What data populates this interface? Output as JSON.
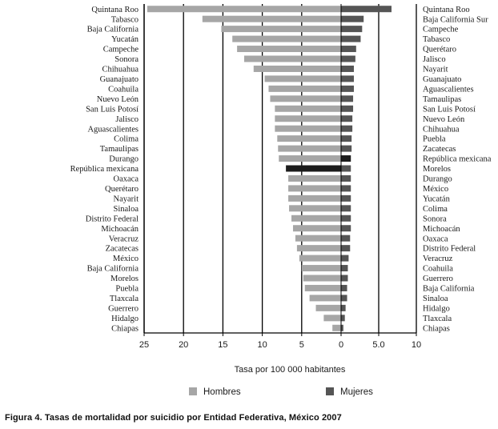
{
  "chart_data": {
    "type": "bar",
    "title": "",
    "xlabel": "Tasa por 100 000 habitantes",
    "ylabel": "",
    "grid": true,
    "series": [
      {
        "name": "Hombres",
        "color": "#a6a6a6",
        "highlight_color": "#1c1c1c",
        "highlight_category": "República mexicana",
        "categories": [
          "Quintana Roo",
          "Tabasco",
          "Baja California",
          "Yucatán",
          "Campeche",
          "Sonora",
          "Chihuahua",
          "Guanajuato",
          "Coahuila",
          "Nuevo León",
          "San Luis Potosí",
          "Jalisco",
          "Aguascalientes",
          "Colima",
          "Tamaulipas",
          "Durango",
          "República mexicana",
          "Oaxaca",
          "Querétaro",
          "Nayarit",
          "Sinaloa",
          "Distrito Federal",
          "Michoacán",
          "Veracruz",
          "Zacatecas",
          "México",
          "Baja California",
          "Morelos",
          "Puebla",
          "Tlaxcala",
          "Guerrero",
          "Hidalgo",
          "Chiapas"
        ],
        "values": [
          24.6,
          17.6,
          15.2,
          13.8,
          13.2,
          12.3,
          11.1,
          9.7,
          9.2,
          9.0,
          8.4,
          8.4,
          8.4,
          8.1,
          8.0,
          7.9,
          7.0,
          6.7,
          6.7,
          6.7,
          6.6,
          6.3,
          6.1,
          5.8,
          5.6,
          5.3,
          5.0,
          4.8,
          4.6,
          4.0,
          3.2,
          2.2,
          1.1
        ]
      },
      {
        "name": "Mujeres",
        "color": "#555555",
        "highlight_color": "#1c1c1c",
        "highlight_category": "República mexicana",
        "categories": [
          "Quintana Roo",
          "Baja California Sur",
          "Campeche",
          "Tabasco",
          "Querétaro",
          "Jalisco",
          "Nayarit",
          "Guanajuato",
          "Aguascalientes",
          "Tamaulipas",
          "San Luis Potosí",
          "Nuevo León",
          "Chihuahua",
          "Puebla",
          "Zacatecas",
          "República mexicana",
          "Morelos",
          "Durango",
          "México",
          "Yucatán",
          "Colima",
          "Sonora",
          "Michoacán",
          "Oaxaca",
          "Distrito Federal",
          "Veracruz",
          "Coahuila",
          "Guerrero",
          "Baja California",
          "Sinaloa",
          "Hidalgo",
          "Tlaxcala",
          "Chiapas"
        ],
        "values": [
          6.7,
          3.0,
          2.8,
          2.6,
          2.0,
          1.9,
          1.7,
          1.7,
          1.7,
          1.6,
          1.6,
          1.5,
          1.5,
          1.4,
          1.4,
          1.3,
          1.3,
          1.3,
          1.3,
          1.3,
          1.3,
          1.3,
          1.3,
          1.2,
          1.2,
          1.0,
          0.9,
          0.9,
          0.8,
          0.8,
          0.6,
          0.5,
          0.3
        ]
      }
    ],
    "left_axis": {
      "ticks": [
        25,
        20,
        15,
        10,
        5,
        0
      ],
      "xlim": [
        0,
        25
      ]
    },
    "right_axis": {
      "ticks": [
        5.0,
        10
      ],
      "xlim": [
        0,
        10
      ]
    },
    "legend": {
      "items": [
        "Hombres",
        "Mujeres"
      ],
      "placement": "bottom-center"
    }
  },
  "caption": "Figura 4. Tasas de mortalidad por suicidio por Entidad Federativa, México 2007"
}
